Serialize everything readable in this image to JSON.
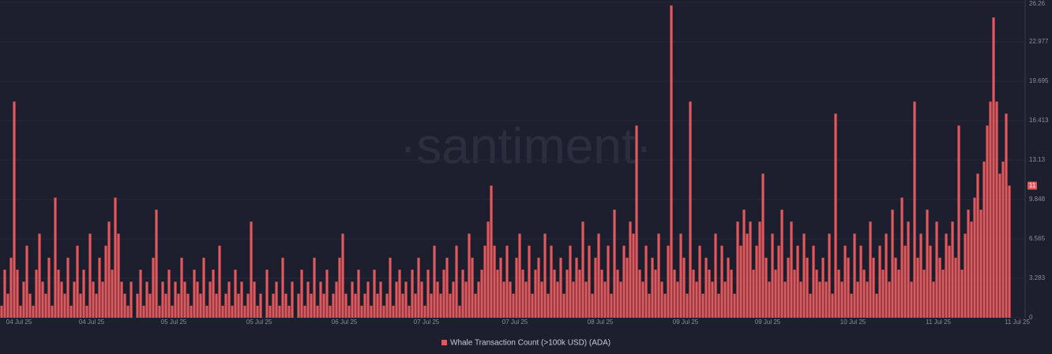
{
  "chart_data": {
    "type": "bar",
    "watermark": "·santiment·",
    "series": [
      {
        "name": "Whale Transaction Count (>100k USD) (ADA)",
        "color": "#e0585c",
        "values": [
          1,
          4,
          2,
          5,
          18,
          4,
          1,
          3,
          6,
          2,
          1,
          4,
          7,
          3,
          2,
          5,
          1,
          10,
          4,
          3,
          2,
          5,
          1,
          3,
          6,
          2,
          4,
          1,
          7,
          3,
          2,
          5,
          3,
          6,
          8,
          4,
          10,
          7,
          3,
          2,
          1,
          3,
          0,
          2,
          4,
          1,
          3,
          2,
          5,
          9,
          1,
          3,
          2,
          4,
          1,
          3,
          2,
          5,
          3,
          2,
          1,
          4,
          3,
          2,
          5,
          1,
          3,
          4,
          2,
          6,
          1,
          2,
          3,
          1,
          4,
          2,
          3,
          1,
          2,
          8,
          3,
          1,
          2,
          0,
          4,
          1,
          2,
          3,
          1,
          5,
          2,
          1,
          3,
          0,
          2,
          4,
          1,
          3,
          2,
          5,
          1,
          3,
          2,
          4,
          1,
          2,
          3,
          5,
          7,
          2,
          1,
          3,
          2,
          4,
          1,
          2,
          3,
          1,
          4,
          2,
          3,
          1,
          2,
          5,
          1,
          3,
          4,
          2,
          3,
          1,
          4,
          2,
          5,
          3,
          1,
          4,
          2,
          6,
          3,
          2,
          4,
          5,
          2,
          3,
          6,
          1,
          4,
          3,
          7,
          5,
          2,
          3,
          4,
          6,
          8,
          11,
          6,
          4,
          5,
          3,
          6,
          3,
          2,
          5,
          7,
          4,
          3,
          6,
          2,
          4,
          5,
          3,
          7,
          2,
          6,
          4,
          3,
          5,
          2,
          4,
          6,
          3,
          5,
          4,
          8,
          3,
          6,
          2,
          5,
          7,
          4,
          3,
          6,
          2,
          9,
          4,
          3,
          6,
          5,
          8,
          7,
          16,
          4,
          3,
          6,
          2,
          5,
          4,
          7,
          3,
          2,
          6,
          26,
          4,
          3,
          7,
          5,
          2,
          18,
          4,
          3,
          6,
          2,
          5,
          4,
          3,
          7,
          2,
          6,
          3,
          5,
          4,
          2,
          8,
          6,
          9,
          7,
          8,
          4,
          6,
          8,
          12,
          5,
          3,
          7,
          4,
          6,
          9,
          3,
          5,
          8,
          4,
          6,
          3,
          7,
          5,
          2,
          6,
          4,
          3,
          5,
          3,
          7,
          2,
          17,
          4,
          3,
          6,
          5,
          2,
          7,
          3,
          6,
          4,
          3,
          8,
          5,
          2,
          6,
          4,
          7,
          3,
          9,
          5,
          4,
          10,
          6,
          8,
          3,
          18,
          5,
          7,
          4,
          9,
          6,
          3,
          8,
          5,
          4,
          7,
          6,
          8,
          5,
          16,
          4,
          7,
          9,
          8,
          10,
          12,
          9,
          13,
          16,
          18,
          25,
          18,
          12,
          13,
          17,
          11
        ]
      }
    ],
    "categories": [
      null,
      null,
      null,
      "04 Jul 25",
      null,
      null,
      null,
      null,
      null,
      null,
      null,
      null,
      null,
      null,
      null,
      null,
      null,
      null,
      null,
      null,
      null,
      null,
      null,
      null,
      null,
      null,
      "04 Jul 25",
      null,
      null,
      null,
      null,
      null,
      null,
      null,
      null,
      null,
      null,
      null,
      null,
      null,
      null,
      null,
      null,
      null,
      null,
      null,
      null,
      null,
      null,
      null,
      null,
      null,
      "05 Jul 25",
      null,
      null,
      null,
      null,
      null,
      null,
      null,
      null,
      null,
      null,
      null,
      null,
      null,
      null,
      null,
      null,
      null,
      null,
      null,
      null,
      null,
      null,
      null,
      null,
      null,
      null,
      "05 Jul 25",
      null,
      null,
      null,
      null,
      null,
      null,
      null,
      null,
      null,
      null,
      null,
      null,
      null,
      null,
      null,
      null,
      null,
      null,
      null,
      null,
      null,
      null,
      null,
      null,
      null,
      null,
      "06 Jul 25",
      null,
      null,
      null,
      null,
      null,
      null,
      null,
      null,
      null,
      null,
      null,
      null,
      null,
      null,
      null,
      null,
      null,
      null,
      null,
      null,
      null,
      null,
      null,
      null,
      null,
      "07 Jul 25",
      null,
      null,
      null,
      null,
      null,
      null,
      null,
      null,
      null,
      null,
      null,
      null,
      null,
      null,
      null,
      null,
      null,
      null,
      null,
      null,
      null,
      null,
      null,
      null,
      null,
      null,
      null,
      "07 Jul 25",
      null,
      null,
      null,
      null,
      null,
      null,
      null,
      null,
      null,
      null,
      null,
      null,
      null,
      null,
      null,
      null,
      null,
      null,
      null,
      null,
      null,
      null,
      null,
      null,
      null,
      null,
      "08 Jul 25",
      null,
      null,
      null,
      null,
      null,
      null,
      null,
      null,
      null,
      null,
      null,
      null,
      null,
      null,
      null,
      null,
      null,
      null,
      null,
      null,
      null,
      null,
      null,
      null,
      null,
      null,
      "09 Jul 25",
      null,
      null,
      null,
      null,
      null,
      null,
      null,
      null,
      null,
      null,
      null,
      null,
      null,
      null,
      null,
      null,
      null,
      null,
      null,
      null,
      null,
      null,
      null,
      null,
      null,
      "09 Jul 25",
      null,
      null,
      null,
      null,
      null,
      null,
      null,
      null,
      null,
      null,
      null,
      null,
      null,
      null,
      null,
      null,
      null,
      null,
      null,
      null,
      null,
      null,
      null,
      null,
      null,
      null,
      "10 Jul 25",
      null,
      null,
      null,
      null,
      null,
      null,
      null,
      null,
      null,
      null,
      null,
      null,
      null,
      null,
      null,
      null,
      null,
      null,
      null,
      null,
      null,
      null,
      null,
      null,
      null,
      null,
      "11 Jul 25",
      null,
      null,
      null,
      null,
      null,
      null,
      null,
      null,
      null,
      null,
      null,
      null,
      null,
      null,
      null,
      null,
      null,
      null,
      null,
      null,
      null,
      null,
      null,
      null,
      "11 Jul 25"
    ],
    "ylim": [
      0,
      26.26
    ],
    "yticks": [
      0,
      3.283,
      6.565,
      9.848,
      13.13,
      16.413,
      19.695,
      22.977,
      26.26
    ],
    "grid": true
  }
}
